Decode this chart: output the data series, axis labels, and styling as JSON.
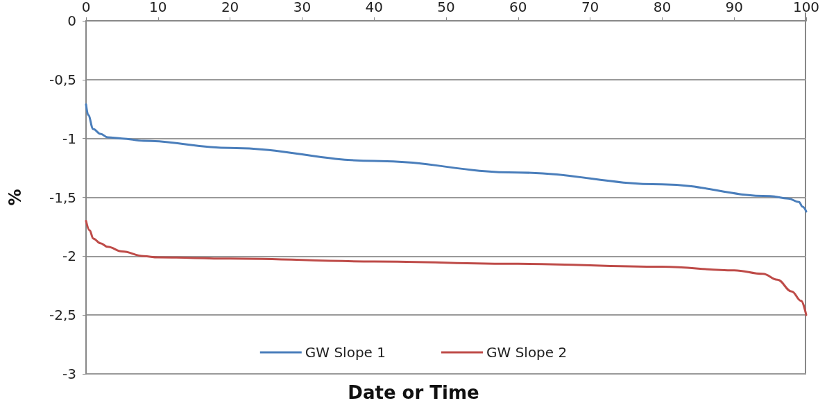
{
  "chart_data": {
    "type": "line",
    "xlabel": "Date or Time",
    "ylabel": "%",
    "xlim": [
      0,
      100
    ],
    "xticks": [
      0,
      10,
      20,
      30,
      40,
      50,
      60,
      70,
      80,
      90,
      100
    ],
    "ylim": [
      -3,
      0
    ],
    "yticks": [
      {
        "value": -3,
        "label": "-3"
      },
      {
        "value": -2.5,
        "label": "-2,5"
      },
      {
        "value": -2,
        "label": "-2"
      },
      {
        "value": -1.5,
        "label": "-1,5"
      },
      {
        "value": -1,
        "label": "-1"
      },
      {
        "value": -0.5,
        "label": "-0,5"
      },
      {
        "value": 0,
        "label": "0"
      }
    ],
    "grid": "y",
    "legend": "bottom",
    "marker": "none",
    "line_style": "solid",
    "series": [
      {
        "name": "GW Slope 1",
        "color": "#4a7ebb",
        "x": [
          0,
          0.3,
          1,
          2,
          3,
          5,
          8,
          20,
          40,
          60,
          80,
          95,
          97.5,
          99,
          99.5,
          100
        ],
        "values": [
          -0.71,
          -0.8,
          -0.92,
          -0.96,
          -0.99,
          -1.0,
          -1.02,
          -1.08,
          -1.19,
          -1.29,
          -1.39,
          -1.49,
          -1.51,
          -1.54,
          -1.58,
          -1.62
        ]
      },
      {
        "name": "GW Slope 2",
        "color": "#be4b48",
        "x": [
          0,
          0.5,
          1,
          2,
          3,
          5,
          8,
          10,
          20,
          40,
          60,
          80,
          90,
          94,
          96,
          98,
          99.3,
          100
        ],
        "values": [
          -1.7,
          -1.78,
          -1.85,
          -1.89,
          -1.92,
          -1.96,
          -2.0,
          -2.01,
          -2.02,
          -2.045,
          -2.065,
          -2.09,
          -2.12,
          -2.15,
          -2.2,
          -2.3,
          -2.38,
          -2.5
        ]
      }
    ]
  }
}
